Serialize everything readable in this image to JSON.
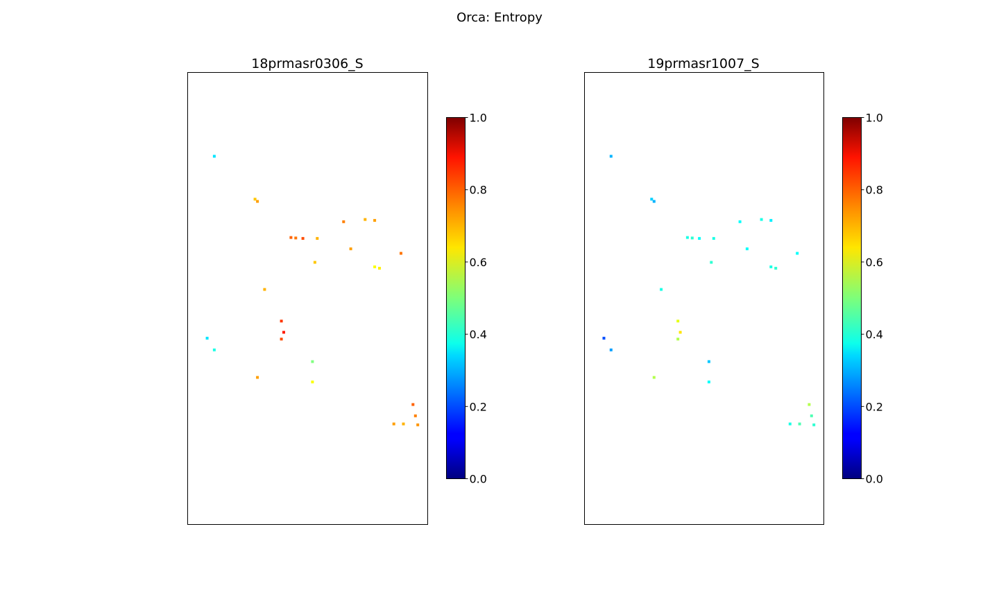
{
  "figure": {
    "title": "Orca: Entropy"
  },
  "chart_data": [
    {
      "type": "heatmap",
      "title": "18prmasr0306_S",
      "colormap": "jet",
      "colorbar": {
        "range": [
          0.0,
          1.0
        ],
        "ticks": [
          "0.0",
          "0.2",
          "0.4",
          "0.6",
          "0.8",
          "1.0"
        ]
      },
      "axes_ticks_visible": false,
      "grid": false,
      "cells": [
        {
          "col": 0.11,
          "row": 0.185,
          "value": 0.35
        },
        {
          "col": 0.28,
          "row": 0.28,
          "value": 0.68
        },
        {
          "col": 0.29,
          "row": 0.285,
          "value": 0.72
        },
        {
          "col": 0.43,
          "row": 0.365,
          "value": 0.78
        },
        {
          "col": 0.45,
          "row": 0.366,
          "value": 0.76
        },
        {
          "col": 0.48,
          "row": 0.367,
          "value": 0.8
        },
        {
          "col": 0.54,
          "row": 0.367,
          "value": 0.7
        },
        {
          "col": 0.65,
          "row": 0.33,
          "value": 0.75
        },
        {
          "col": 0.74,
          "row": 0.325,
          "value": 0.7
        },
        {
          "col": 0.78,
          "row": 0.327,
          "value": 0.72
        },
        {
          "col": 0.68,
          "row": 0.39,
          "value": 0.72
        },
        {
          "col": 0.53,
          "row": 0.42,
          "value": 0.68
        },
        {
          "col": 0.89,
          "row": 0.4,
          "value": 0.76
        },
        {
          "col": 0.78,
          "row": 0.43,
          "value": 0.62
        },
        {
          "col": 0.8,
          "row": 0.433,
          "value": 0.64
        },
        {
          "col": 0.32,
          "row": 0.48,
          "value": 0.7
        },
        {
          "col": 0.39,
          "row": 0.55,
          "value": 0.82
        },
        {
          "col": 0.4,
          "row": 0.575,
          "value": 0.85
        },
        {
          "col": 0.39,
          "row": 0.59,
          "value": 0.8
        },
        {
          "col": 0.08,
          "row": 0.588,
          "value": 0.35
        },
        {
          "col": 0.11,
          "row": 0.614,
          "value": 0.4
        },
        {
          "col": 0.52,
          "row": 0.64,
          "value": 0.5
        },
        {
          "col": 0.52,
          "row": 0.685,
          "value": 0.62
        },
        {
          "col": 0.29,
          "row": 0.675,
          "value": 0.72
        },
        {
          "col": 0.94,
          "row": 0.735,
          "value": 0.78
        },
        {
          "col": 0.95,
          "row": 0.76,
          "value": 0.75
        },
        {
          "col": 0.96,
          "row": 0.78,
          "value": 0.73
        },
        {
          "col": 0.86,
          "row": 0.778,
          "value": 0.72
        },
        {
          "col": 0.9,
          "row": 0.778,
          "value": 0.7
        }
      ]
    },
    {
      "type": "heatmap",
      "title": "19prmasr1007_S",
      "colormap": "jet",
      "colorbar": {
        "range": [
          0.0,
          1.0
        ],
        "ticks": [
          "0.0",
          "0.2",
          "0.4",
          "0.6",
          "0.8",
          "1.0"
        ]
      },
      "axes_ticks_visible": false,
      "grid": false,
      "cells": [
        {
          "col": 0.11,
          "row": 0.185,
          "value": 0.3
        },
        {
          "col": 0.28,
          "row": 0.28,
          "value": 0.33
        },
        {
          "col": 0.29,
          "row": 0.285,
          "value": 0.3
        },
        {
          "col": 0.43,
          "row": 0.365,
          "value": 0.4
        },
        {
          "col": 0.45,
          "row": 0.366,
          "value": 0.42
        },
        {
          "col": 0.48,
          "row": 0.367,
          "value": 0.38
        },
        {
          "col": 0.54,
          "row": 0.367,
          "value": 0.4
        },
        {
          "col": 0.65,
          "row": 0.33,
          "value": 0.38
        },
        {
          "col": 0.74,
          "row": 0.325,
          "value": 0.4
        },
        {
          "col": 0.78,
          "row": 0.327,
          "value": 0.36
        },
        {
          "col": 0.68,
          "row": 0.39,
          "value": 0.38
        },
        {
          "col": 0.53,
          "row": 0.42,
          "value": 0.42
        },
        {
          "col": 0.89,
          "row": 0.4,
          "value": 0.38
        },
        {
          "col": 0.78,
          "row": 0.43,
          "value": 0.4
        },
        {
          "col": 0.8,
          "row": 0.433,
          "value": 0.42
        },
        {
          "col": 0.32,
          "row": 0.48,
          "value": 0.4
        },
        {
          "col": 0.39,
          "row": 0.55,
          "value": 0.6
        },
        {
          "col": 0.4,
          "row": 0.575,
          "value": 0.65
        },
        {
          "col": 0.39,
          "row": 0.59,
          "value": 0.55
        },
        {
          "col": 0.08,
          "row": 0.588,
          "value": 0.2
        },
        {
          "col": 0.11,
          "row": 0.614,
          "value": 0.28
        },
        {
          "col": 0.52,
          "row": 0.64,
          "value": 0.32
        },
        {
          "col": 0.52,
          "row": 0.685,
          "value": 0.38
        },
        {
          "col": 0.29,
          "row": 0.675,
          "value": 0.55
        },
        {
          "col": 0.94,
          "row": 0.735,
          "value": 0.55
        },
        {
          "col": 0.95,
          "row": 0.76,
          "value": 0.45
        },
        {
          "col": 0.96,
          "row": 0.78,
          "value": 0.42
        },
        {
          "col": 0.86,
          "row": 0.778,
          "value": 0.4
        },
        {
          "col": 0.9,
          "row": 0.778,
          "value": 0.45
        }
      ]
    }
  ]
}
